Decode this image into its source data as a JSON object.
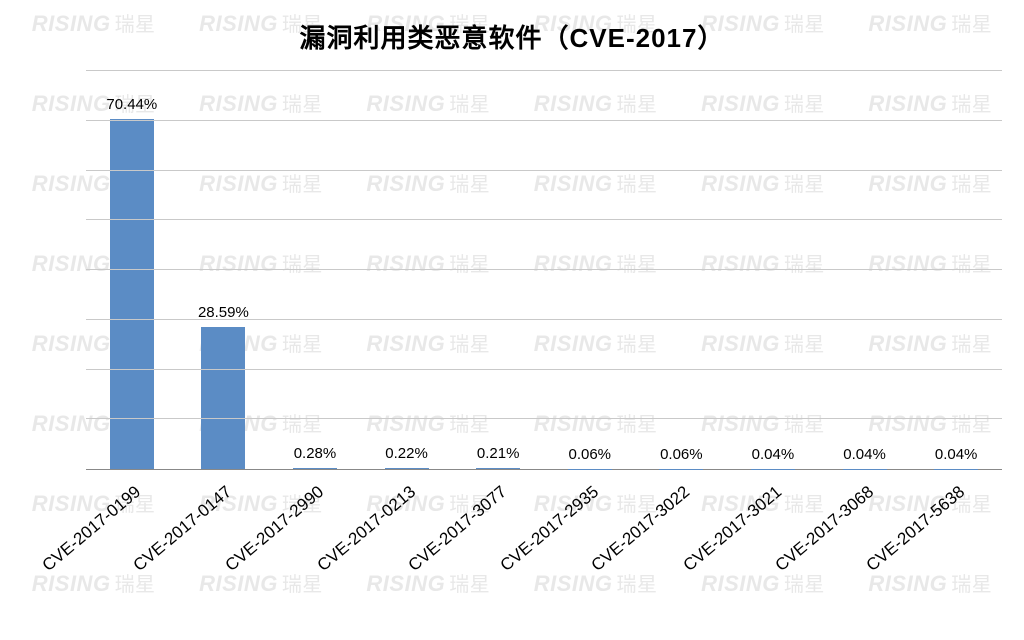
{
  "chart": {
    "type": "bar",
    "title": "漏洞利用类恶意软件（CVE-2017）",
    "title_fontsize": 26,
    "label_fontsize": 15,
    "xlabel_fontsize": 17,
    "categories": [
      "CVE-2017-0199",
      "CVE-2017-0147",
      "CVE-2017-2990",
      "CVE-2017-0213",
      "CVE-2017-3077",
      "CVE-2017-2935",
      "CVE-2017-3022",
      "CVE-2017-3021",
      "CVE-2017-3068",
      "CVE-2017-5638"
    ],
    "values": [
      70.44,
      28.59,
      0.28,
      0.22,
      0.21,
      0.06,
      0.06,
      0.04,
      0.04,
      0.04
    ],
    "display_labels": [
      "70.44%",
      "28.59%",
      "0.28%",
      "0.22%",
      "0.21%",
      "0.06%",
      "0.06%",
      "0.04%",
      "0.04%",
      "0.04%"
    ],
    "bar_color": "#5b8cc5",
    "background_color": "#ffffff",
    "grid_color": "#c9c9c9",
    "axis_color": "#888888",
    "ymax": 80,
    "ytick_step": 10,
    "xlabel_rotation_deg": -40,
    "bar_width_ratio": 0.48
  },
  "watermark": {
    "text_en": "RISING",
    "text_cn": "瑞星",
    "color": "#e8e8e8",
    "rows": 8,
    "cols": 6
  }
}
